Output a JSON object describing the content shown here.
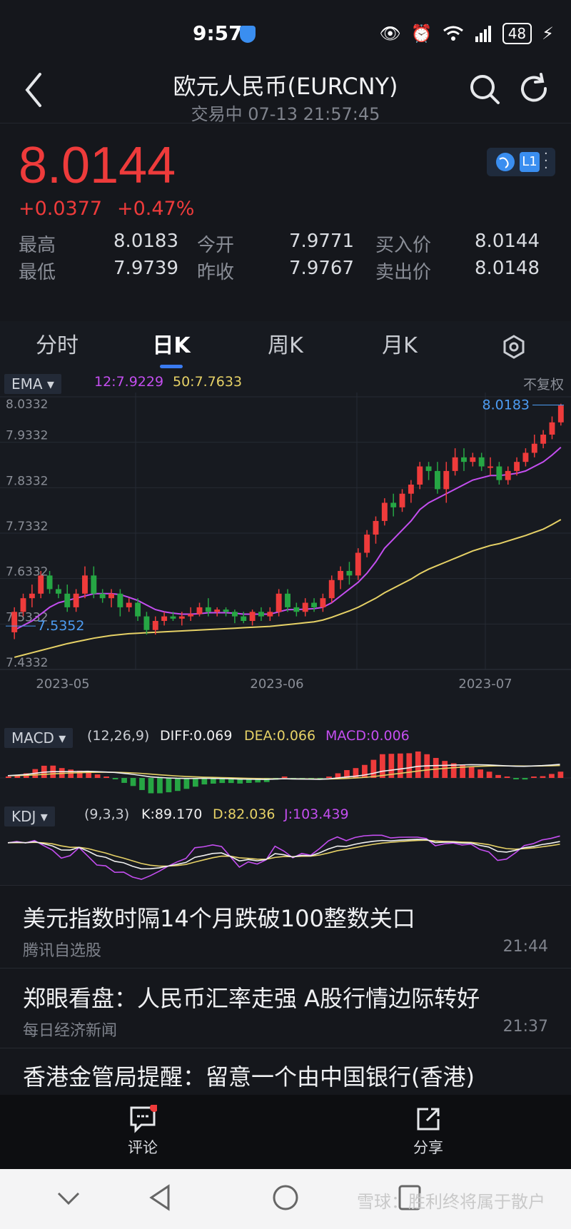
{
  "status": {
    "time": "9:57",
    "battery": "48"
  },
  "header": {
    "title": "欧元人民币(EURCNY)",
    "subtitle": "交易中 07-13 21:57:45"
  },
  "quote": {
    "price": "8.0144",
    "change": "+0.0377",
    "change_pct": "+0.47%",
    "level": "L1",
    "rows": [
      {
        "l1": "最高",
        "v1": "8.0183",
        "l2": "今开",
        "v2": "7.9771",
        "l3": "买入价",
        "v3": "8.0144"
      },
      {
        "l1": "最低",
        "v1": "7.9739",
        "l2": "昨收",
        "v2": "7.9767",
        "l3": "卖出价",
        "v3": "8.0148"
      }
    ],
    "colors": {
      "up": "#ee3b3b",
      "down": "#26a644"
    }
  },
  "tabs": [
    "分时",
    "日K",
    "周K",
    "月K"
  ],
  "indicators": {
    "ema": {
      "label": "EMA ▾",
      "ema12": "12:7.9229",
      "ema50": "50:7.7633",
      "right": "不复权"
    },
    "macd": {
      "label": "MACD ▾",
      "params": "(12,26,9)",
      "diff": "DIFF:0.069",
      "dea": "DEA:0.066",
      "macd": "MACD:0.006"
    },
    "kdj": {
      "label": "KDJ ▾",
      "params": "(9,3,3)",
      "k": "K:89.170",
      "d": "D:82.036",
      "j": "J:103.439"
    }
  },
  "chart_data": {
    "type": "candlestick",
    "y_ticks": [
      "8.0332",
      "7.9332",
      "7.8332",
      "7.7332",
      "7.6332",
      "7.5332",
      "7.4332"
    ],
    "x_ticks": [
      "2023-05",
      "2023-06",
      "2023-07"
    ],
    "max_label": "8.0183",
    "min_label": "7.5352",
    "ylim": [
      7.4332,
      8.0332
    ],
    "candles": [
      [
        7.515,
        7.56,
        7.5,
        7.57
      ],
      [
        7.56,
        7.59,
        7.55,
        7.6
      ],
      [
        7.59,
        7.6,
        7.57,
        7.62
      ],
      [
        7.6,
        7.64,
        7.59,
        7.65
      ],
      [
        7.64,
        7.61,
        7.6,
        7.65
      ],
      [
        7.61,
        7.6,
        7.59,
        7.62
      ],
      [
        7.6,
        7.57,
        7.56,
        7.62
      ],
      [
        7.57,
        7.6,
        7.56,
        7.61
      ],
      [
        7.6,
        7.64,
        7.59,
        7.66
      ],
      [
        7.64,
        7.6,
        7.59,
        7.66
      ],
      [
        7.6,
        7.59,
        7.58,
        7.61
      ],
      [
        7.59,
        7.6,
        7.57,
        7.61
      ],
      [
        7.6,
        7.57,
        7.55,
        7.61
      ],
      [
        7.57,
        7.58,
        7.56,
        7.59
      ],
      [
        7.58,
        7.55,
        7.54,
        7.59
      ],
      [
        7.55,
        7.52,
        7.51,
        7.56
      ],
      [
        7.52,
        7.54,
        7.51,
        7.55
      ],
      [
        7.54,
        7.55,
        7.53,
        7.56
      ],
      [
        7.55,
        7.545,
        7.54,
        7.56
      ],
      [
        7.545,
        7.55,
        7.53,
        7.56
      ],
      [
        7.55,
        7.555,
        7.54,
        7.57
      ],
      [
        7.555,
        7.57,
        7.55,
        7.58
      ],
      [
        7.57,
        7.56,
        7.55,
        7.59
      ],
      [
        7.56,
        7.565,
        7.55,
        7.57
      ],
      [
        7.565,
        7.56,
        7.55,
        7.57
      ],
      [
        7.56,
        7.55,
        7.535,
        7.565
      ],
      [
        7.55,
        7.54,
        7.535,
        7.56
      ],
      [
        7.54,
        7.56,
        7.53,
        7.565
      ],
      [
        7.56,
        7.55,
        7.54,
        7.57
      ],
      [
        7.55,
        7.56,
        7.54,
        7.57
      ],
      [
        7.56,
        7.6,
        7.55,
        7.61
      ],
      [
        7.6,
        7.57,
        7.56,
        7.61
      ],
      [
        7.57,
        7.56,
        7.55,
        7.58
      ],
      [
        7.56,
        7.58,
        7.55,
        7.59
      ],
      [
        7.58,
        7.57,
        7.56,
        7.59
      ],
      [
        7.57,
        7.59,
        7.56,
        7.6
      ],
      [
        7.59,
        7.63,
        7.58,
        7.64
      ],
      [
        7.63,
        7.65,
        7.61,
        7.66
      ],
      [
        7.65,
        7.64,
        7.62,
        7.67
      ],
      [
        7.64,
        7.69,
        7.63,
        7.7
      ],
      [
        7.69,
        7.73,
        7.68,
        7.74
      ],
      [
        7.73,
        7.76,
        7.71,
        7.77
      ],
      [
        7.76,
        7.8,
        7.75,
        7.81
      ],
      [
        7.8,
        7.79,
        7.77,
        7.82
      ],
      [
        7.79,
        7.82,
        7.78,
        7.83
      ],
      [
        7.82,
        7.84,
        7.8,
        7.85
      ],
      [
        7.84,
        7.88,
        7.83,
        7.89
      ],
      [
        7.88,
        7.87,
        7.85,
        7.89
      ],
      [
        7.87,
        7.83,
        7.82,
        7.89
      ],
      [
        7.83,
        7.87,
        7.8,
        7.89
      ],
      [
        7.87,
        7.9,
        7.86,
        7.92
      ],
      [
        7.9,
        7.89,
        7.87,
        7.92
      ],
      [
        7.89,
        7.9,
        7.88,
        7.91
      ],
      [
        7.9,
        7.88,
        7.87,
        7.91
      ],
      [
        7.88,
        7.88,
        7.86,
        7.9
      ],
      [
        7.88,
        7.85,
        7.84,
        7.89
      ],
      [
        7.85,
        7.87,
        7.84,
        7.88
      ],
      [
        7.87,
        7.89,
        7.86,
        7.9
      ],
      [
        7.89,
        7.91,
        7.88,
        7.92
      ],
      [
        7.91,
        7.93,
        7.9,
        7.95
      ],
      [
        7.93,
        7.95,
        7.92,
        7.96
      ],
      [
        7.95,
        7.977,
        7.94,
        7.99
      ],
      [
        7.977,
        8.014,
        7.97,
        8.018
      ]
    ],
    "ema12": [
      7.52,
      7.53,
      7.54,
      7.555,
      7.57,
      7.58,
      7.585,
      7.59,
      7.595,
      7.6,
      7.6,
      7.6,
      7.598,
      7.592,
      7.585,
      7.575,
      7.565,
      7.56,
      7.557,
      7.555,
      7.555,
      7.556,
      7.558,
      7.558,
      7.558,
      7.557,
      7.555,
      7.555,
      7.555,
      7.555,
      7.56,
      7.565,
      7.565,
      7.566,
      7.567,
      7.57,
      7.58,
      7.595,
      7.61,
      7.625,
      7.645,
      7.67,
      7.7,
      7.72,
      7.74,
      7.76,
      7.785,
      7.8,
      7.81,
      7.82,
      7.83,
      7.84,
      7.85,
      7.855,
      7.86,
      7.86,
      7.862,
      7.865,
      7.87,
      7.88,
      7.89,
      7.905,
      7.922
    ],
    "ema50": [
      7.46,
      7.465,
      7.47,
      7.475,
      7.48,
      7.485,
      7.49,
      7.494,
      7.498,
      7.502,
      7.505,
      7.508,
      7.51,
      7.512,
      7.513,
      7.514,
      7.515,
      7.516,
      7.517,
      7.518,
      7.519,
      7.52,
      7.521,
      7.522,
      7.523,
      7.524,
      7.525,
      7.526,
      7.527,
      7.528,
      7.53,
      7.532,
      7.534,
      7.536,
      7.538,
      7.542,
      7.548,
      7.555,
      7.562,
      7.57,
      7.58,
      7.59,
      7.602,
      7.612,
      7.622,
      7.632,
      7.644,
      7.654,
      7.662,
      7.67,
      7.678,
      7.686,
      7.694,
      7.7,
      7.706,
      7.71,
      7.716,
      7.722,
      7.728,
      7.735,
      7.742,
      7.752,
      7.763
    ]
  },
  "news": [
    {
      "title": "美元指数时隔14个月跌破100整数关口",
      "source": "腾讯自选股",
      "time": "21:44"
    },
    {
      "title": "郑眼看盘：人民币汇率走强 A股行情边际转好",
      "source": "每日经济新闻",
      "time": "21:37"
    },
    {
      "title": "香港金管局提醒：留意一个由中国银行(香港)",
      "source": "",
      "time": ""
    }
  ],
  "actions": {
    "comment": "评论",
    "share": "分享"
  },
  "watermark": "雪球：胜利终将属于散户"
}
